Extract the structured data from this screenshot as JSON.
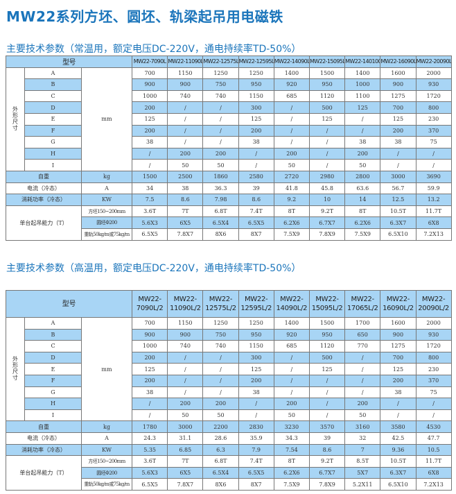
{
  "title": "MW22系列方坯、圆坯、轨梁起吊用电磁铁",
  "colors": {
    "accent": "#1b75bb",
    "row_blue": "#a8d5f5"
  },
  "tables": [
    {
      "heading": "主要技术参数（常温用，额定电压DC-220V，通电持续率TD-50%）",
      "header_label": "型号",
      "models": [
        "MW22-7090L",
        "MW22-11090L",
        "MW22-12575L",
        "MW22-12595L",
        "MW22-14090L",
        "MW22-15095L",
        "MW22-140100L",
        "MW22-16090L",
        "MW22-20090L"
      ],
      "dims_label": "外形尺寸",
      "dims_unit": "mm",
      "dims": [
        {
          "label": "A",
          "values": [
            "700",
            "1150",
            "1250",
            "1250",
            "1400",
            "1500",
            "1400",
            "1600",
            "2000"
          ]
        },
        {
          "label": "B",
          "values": [
            "900",
            "900",
            "750",
            "950",
            "920",
            "950",
            "1000",
            "900",
            "930"
          ]
        },
        {
          "label": "C",
          "values": [
            "1000",
            "740",
            "740",
            "1150",
            "685",
            "1120",
            "1100",
            "1275",
            "1720"
          ]
        },
        {
          "label": "D",
          "values": [
            "200",
            "/",
            "/",
            "300",
            "/",
            "500",
            "125",
            "700",
            "800"
          ]
        },
        {
          "label": "E",
          "values": [
            "125",
            "/",
            "/",
            "125",
            "/",
            "125",
            "/",
            "125",
            "230"
          ]
        },
        {
          "label": "F",
          "values": [
            "200",
            "/",
            "/",
            "200",
            "/",
            "/",
            "/",
            "200",
            "370"
          ]
        },
        {
          "label": "G",
          "values": [
            "38",
            "/",
            "/",
            "38",
            "/",
            "/",
            "38",
            "38",
            "75"
          ]
        },
        {
          "label": "H",
          "values": [
            "/",
            "200",
            "200",
            "/",
            "200",
            "/",
            "200",
            "/",
            "/"
          ]
        },
        {
          "label": "I",
          "values": [
            "/",
            "50",
            "50",
            "/",
            "50",
            "/",
            "50",
            "/",
            "/"
          ]
        }
      ],
      "rows": [
        {
          "label": "自重",
          "unit": "kg",
          "values": [
            "1500",
            "2500",
            "1860",
            "2580",
            "2720",
            "2980",
            "2800",
            "3000",
            "3690"
          ]
        },
        {
          "label": "电流（冷态）",
          "unit": "A",
          "values": [
            "34",
            "38",
            "36.3",
            "39",
            "41.8",
            "45.8",
            "63.6",
            "56.7",
            "59.9"
          ]
        },
        {
          "label": "消耗功率（冷态）",
          "unit": "KW",
          "values": [
            "7.5",
            "8.6",
            "7.98",
            "8.6",
            "9.2",
            "10",
            "14",
            "12.5",
            "13.2"
          ]
        }
      ],
      "capacity": {
        "label": "单台起吊能力（T）",
        "rows": [
          {
            "label": "方坯150~200mm",
            "values": [
              "3.6T",
              "7T",
              "6.8T",
              "7.4T",
              "8T",
              "9.2T",
              "8T",
              "10.5T",
              "11.7T"
            ]
          },
          {
            "label": "圆坯Φ200",
            "values": [
              "5.6X3",
              "6X5",
              "6.5X4",
              "6.5X5",
              "6.2X6",
              "6.7X7",
              "6.2X6",
              "6.3X7",
              "6X8"
            ]
          },
          {
            "label": "重轨50kg/m或75kg/m",
            "values": [
              "6.5X5",
              "7.8X7",
              "8X6",
              "8X7",
              "7.5X9",
              "7.8X9",
              "7.5X9",
              "6.5X10",
              "7.2X13"
            ]
          }
        ]
      }
    },
    {
      "heading": "主要技术参数（高温用，额定电压DC-220V，通电持续率TD-50%）",
      "header_label": "型号",
      "models": [
        "MW22-7090L/2",
        "MW22-11090L/2",
        "MW22-12575L/2",
        "MW22-12595L/2",
        "MW22-14090L/2",
        "MW22-15095L/2",
        "MW22-17065L/2",
        "MW22-16090L/2",
        "MW22-20090L/2"
      ],
      "dims_label": "外形尺寸",
      "dims_unit": "mm",
      "dims": [
        {
          "label": "A",
          "values": [
            "700",
            "1150",
            "1250",
            "1250",
            "1400",
            "1500",
            "1700",
            "1600",
            "2000"
          ]
        },
        {
          "label": "B",
          "values": [
            "900",
            "900",
            "750",
            "950",
            "920",
            "950",
            "650",
            "900",
            "930"
          ]
        },
        {
          "label": "C",
          "values": [
            "1000",
            "740",
            "740",
            "1150",
            "685",
            "1120",
            "770",
            "1275",
            "1720"
          ]
        },
        {
          "label": "D",
          "values": [
            "200",
            "/",
            "/",
            "300",
            "/",
            "500",
            "/",
            "700",
            "800"
          ]
        },
        {
          "label": "E",
          "values": [
            "125",
            "/",
            "/",
            "125",
            "/",
            "125",
            "/",
            "125",
            "230"
          ]
        },
        {
          "label": "F",
          "values": [
            "200",
            "/",
            "/",
            "200",
            "/",
            "/",
            "/",
            "200",
            "370"
          ]
        },
        {
          "label": "G",
          "values": [
            "38",
            "/",
            "/",
            "38",
            "/",
            "/",
            "/",
            "38",
            "75"
          ]
        },
        {
          "label": "H",
          "values": [
            "/",
            "200",
            "200",
            "/",
            "200",
            "/",
            "200",
            "/",
            "/"
          ]
        },
        {
          "label": "I",
          "values": [
            "/",
            "50",
            "50",
            "/",
            "50",
            "/",
            "50",
            "/",
            "/"
          ]
        }
      ],
      "rows": [
        {
          "label": "自重",
          "unit": "kg",
          "values": [
            "1780",
            "3000",
            "2200",
            "2830",
            "3230",
            "3570",
            "3160",
            "3580",
            "4530"
          ]
        },
        {
          "label": "电流（冷态）",
          "unit": "A",
          "values": [
            "24.3",
            "31.1",
            "28.6",
            "35.9",
            "34.3",
            "39",
            "32",
            "42.5",
            "47.7"
          ]
        },
        {
          "label": "消耗功率（冷态）",
          "unit": "KW",
          "values": [
            "5.35",
            "6.85",
            "6.3",
            "7.9",
            "7.54",
            "8.6",
            "7",
            "9.36",
            "10.5"
          ]
        }
      ],
      "capacity": {
        "label": "单台起吊能力（T）",
        "rows": [
          {
            "label": "方坯150~200mm",
            "values": [
              "3.6T",
              "7T",
              "6.8T",
              "7.4T",
              "8T",
              "9.2T",
              "8.5T",
              "10.5T",
              "11.7T"
            ]
          },
          {
            "label": "圆坯Φ200",
            "values": [
              "5.6X3",
              "6X5",
              "6.5X4",
              "6.5X5",
              "6.2X6",
              "6.7X7",
              "5X7",
              "6.3X7",
              "6X8"
            ]
          },
          {
            "label": "重轨50kg/m或75kg/m",
            "values": [
              "6.5X5",
              "7.8X7",
              "8X6",
              "8X7",
              "7.5X9",
              "7.8X9",
              "5.2X11",
              "6.5X10",
              "7.2X13"
            ]
          }
        ]
      }
    }
  ]
}
